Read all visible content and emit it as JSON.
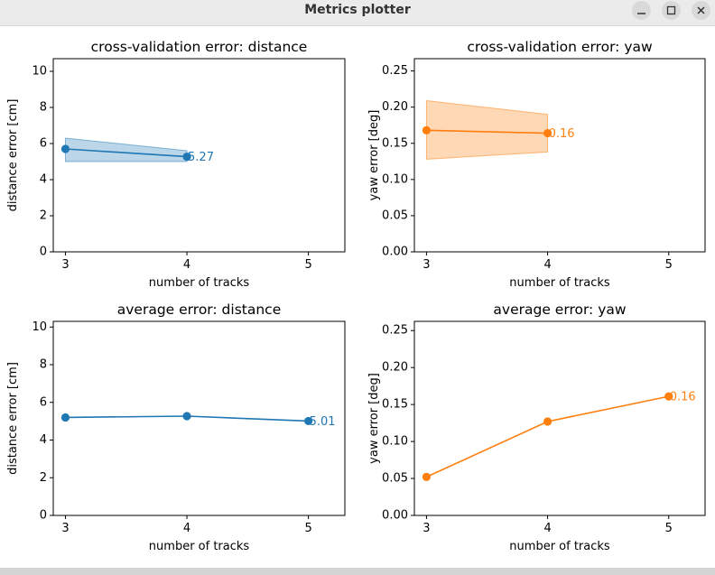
{
  "window": {
    "title": "Metrics plotter"
  },
  "chart_data": [
    {
      "type": "line",
      "title": "cross-validation error: distance",
      "xlabel": "number of tracks",
      "ylabel": "distance error [cm]",
      "xlim": [
        2.9,
        5.3
      ],
      "ylim": [
        0,
        10.7
      ],
      "xticks": [
        3,
        4,
        5
      ],
      "yticks": [
        0,
        2,
        4,
        6,
        8,
        10
      ],
      "grid": false,
      "color": "#1f77b4",
      "x": [
        3,
        4
      ],
      "y": [
        5.7,
        5.27
      ],
      "band": {
        "lower": [
          5.0,
          5.0
        ],
        "upper": [
          6.3,
          5.6
        ]
      },
      "annotation": {
        "x": 4,
        "y": 5.27,
        "text": "5.27"
      }
    },
    {
      "type": "line",
      "title": "cross-validation error: yaw",
      "xlabel": "number of tracks",
      "ylabel": "yaw error [deg]",
      "xlim": [
        2.9,
        5.3
      ],
      "ylim": [
        0,
        0.267
      ],
      "xticks": [
        3,
        4,
        5
      ],
      "yticks": [
        "0.00",
        "0.05",
        "0.10",
        "0.15",
        "0.20",
        "0.25"
      ],
      "grid": false,
      "color": "#ff7f0e",
      "x": [
        3,
        4
      ],
      "y": [
        0.168,
        0.164
      ],
      "band": {
        "lower": [
          0.128,
          0.138
        ],
        "upper": [
          0.209,
          0.19
        ]
      },
      "annotation": {
        "x": 4,
        "y": 0.164,
        "text": "0.16"
      }
    },
    {
      "type": "line",
      "title": "average error: distance",
      "xlabel": "number of tracks",
      "ylabel": "distance error [cm]",
      "xlim": [
        2.9,
        5.3
      ],
      "ylim": [
        0,
        10.3
      ],
      "xticks": [
        3,
        4,
        5
      ],
      "yticks": [
        0,
        2,
        4,
        6,
        8,
        10
      ],
      "grid": false,
      "color": "#1f77b4",
      "x": [
        3,
        4,
        5
      ],
      "y": [
        5.2,
        5.27,
        5.01
      ],
      "annotation": {
        "x": 5,
        "y": 5.01,
        "text": "5.01"
      }
    },
    {
      "type": "line",
      "title": "average error: yaw",
      "xlabel": "number of tracks",
      "ylabel": "yaw error [deg]",
      "xlim": [
        2.9,
        5.3
      ],
      "ylim": [
        0,
        0.2625
      ],
      "xticks": [
        3,
        4,
        5
      ],
      "yticks": [
        "0.00",
        "0.05",
        "0.10",
        "0.15",
        "0.20",
        "0.25"
      ],
      "grid": false,
      "color": "#ff7f0e",
      "x": [
        3,
        4,
        5
      ],
      "y": [
        0.052,
        0.127,
        0.161
      ],
      "annotation": {
        "x": 5,
        "y": 0.161,
        "text": "0.16"
      }
    }
  ]
}
